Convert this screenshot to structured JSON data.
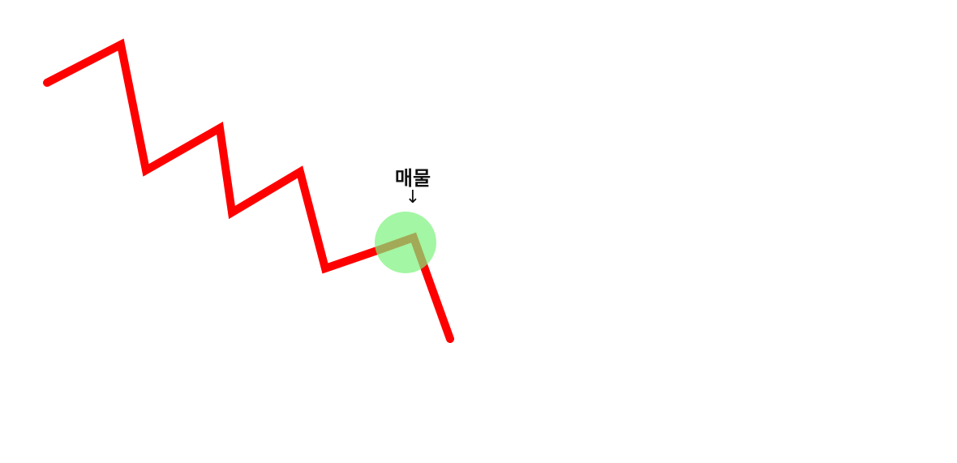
{
  "annotation": {
    "label": "매물",
    "arrow": "↓"
  },
  "colors": {
    "price_line": "#ff0000",
    "highlight_circle": "#7cf27c",
    "background": "#ffffff"
  },
  "icons": {
    "arrow": "down-arrow-icon",
    "highlight": "highlight-circle-icon"
  }
}
